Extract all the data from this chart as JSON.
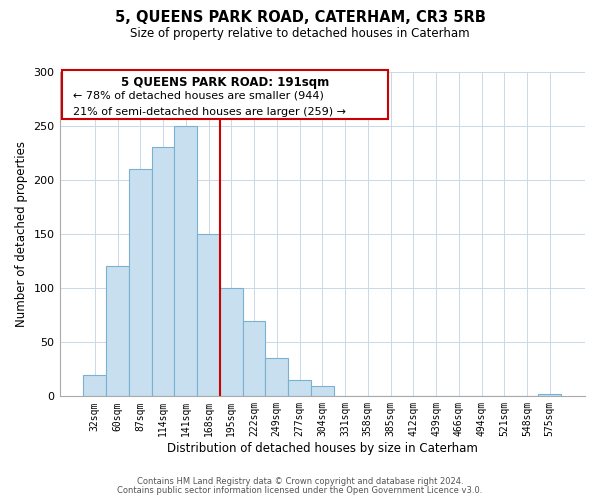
{
  "title": "5, QUEENS PARK ROAD, CATERHAM, CR3 5RB",
  "subtitle": "Size of property relative to detached houses in Caterham",
  "xlabel": "Distribution of detached houses by size in Caterham",
  "ylabel": "Number of detached properties",
  "bar_labels": [
    "32sqm",
    "60sqm",
    "87sqm",
    "114sqm",
    "141sqm",
    "168sqm",
    "195sqm",
    "222sqm",
    "249sqm",
    "277sqm",
    "304sqm",
    "331sqm",
    "358sqm",
    "385sqm",
    "412sqm",
    "439sqm",
    "466sqm",
    "494sqm",
    "521sqm",
    "548sqm",
    "575sqm"
  ],
  "bar_heights": [
    20,
    120,
    210,
    230,
    250,
    150,
    100,
    70,
    35,
    15,
    10,
    0,
    0,
    0,
    0,
    0,
    0,
    0,
    0,
    0,
    2
  ],
  "bar_color": "#c8dff0",
  "bar_edge_color": "#7ab0d0",
  "marker_line_index": 6,
  "marker_line_color": "#cc0000",
  "ylim": [
    0,
    300
  ],
  "yticks": [
    0,
    50,
    100,
    150,
    200,
    250,
    300
  ],
  "annotation_title": "5 QUEENS PARK ROAD: 191sqm",
  "annotation_line1": "← 78% of detached houses are smaller (944)",
  "annotation_line2": "21% of semi-detached houses are larger (259) →",
  "footer_line1": "Contains HM Land Registry data © Crown copyright and database right 2024.",
  "footer_line2": "Contains public sector information licensed under the Open Government Licence v3.0.",
  "background_color": "#ffffff",
  "grid_color": "#c8d8e8"
}
